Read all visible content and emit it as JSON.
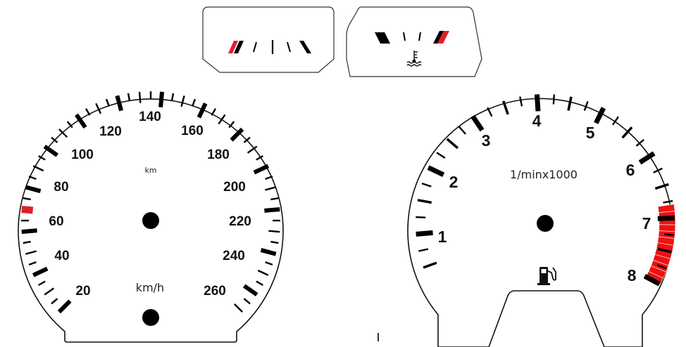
{
  "speedometer": {
    "labels": [
      "20",
      "40",
      "60",
      "80",
      "100",
      "120",
      "140",
      "160",
      "180",
      "200",
      "220",
      "240",
      "260"
    ],
    "unit_small": "km",
    "unit_main": "km/h",
    "max_value": 270,
    "redband_value": 50,
    "red_color": "#e0202a"
  },
  "tachometer": {
    "labels": [
      "1",
      "2",
      "3",
      "4",
      "5",
      "6",
      "7",
      "8"
    ],
    "unit": "1/minx1000",
    "redline_from": 6.8,
    "redline_to": 8,
    "red_color": "#ee1111",
    "fuel_icon": "fuel-pump-icon"
  },
  "fuel_gauge": {
    "stripe_color": "#e0202a"
  },
  "temp_gauge": {
    "icon": "coolant-temperature-icon",
    "stripe_color": "#e0202a"
  }
}
